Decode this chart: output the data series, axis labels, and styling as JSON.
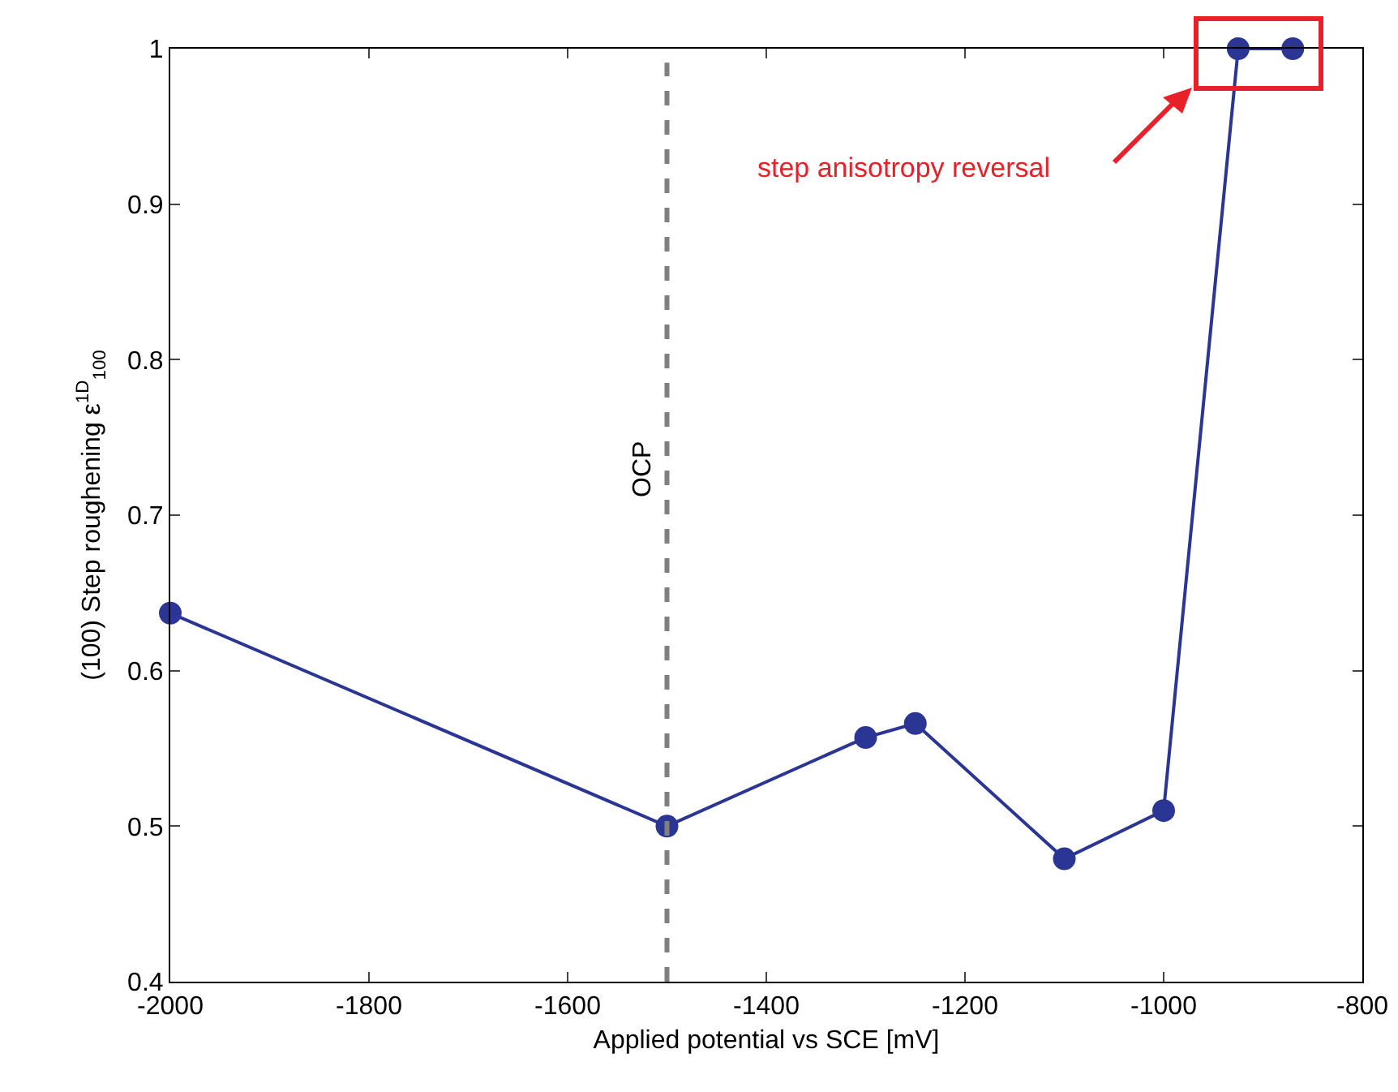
{
  "chart_data": {
    "type": "line",
    "xlabel": "Applied potential vs SCE [mV]",
    "ylabel": "(100) Step roughening ε$^{1D}$$_{100}$",
    "x": [
      -2000,
      -1500,
      -1300,
      -1250,
      -1100,
      -1000,
      -925,
      -870
    ],
    "series": [
      {
        "color": "#2b3593",
        "values": [
          0.637,
          0.5,
          0.557,
          0.566,
          0.479,
          0.51,
          1,
          1
        ]
      }
    ],
    "xlim": [
      -2000,
      -800
    ],
    "xticks": [
      -2000,
      -1800,
      -1600,
      -1400,
      -1200,
      -1000,
      -800
    ],
    "ylim": [
      0.4,
      1
    ],
    "yticks": [
      0.4,
      0.5,
      0.6,
      0.7,
      0.8,
      0.9,
      1
    ],
    "grid": false,
    "marker": "circle",
    "line_style": "solid",
    "ref_lines": [
      {
        "axis": "x",
        "value": -1500,
        "label": "OCP",
        "color": "#808080",
        "line_style": "dashed"
      }
    ],
    "annotations": [
      "step anisotropy reversal"
    ]
  }
}
